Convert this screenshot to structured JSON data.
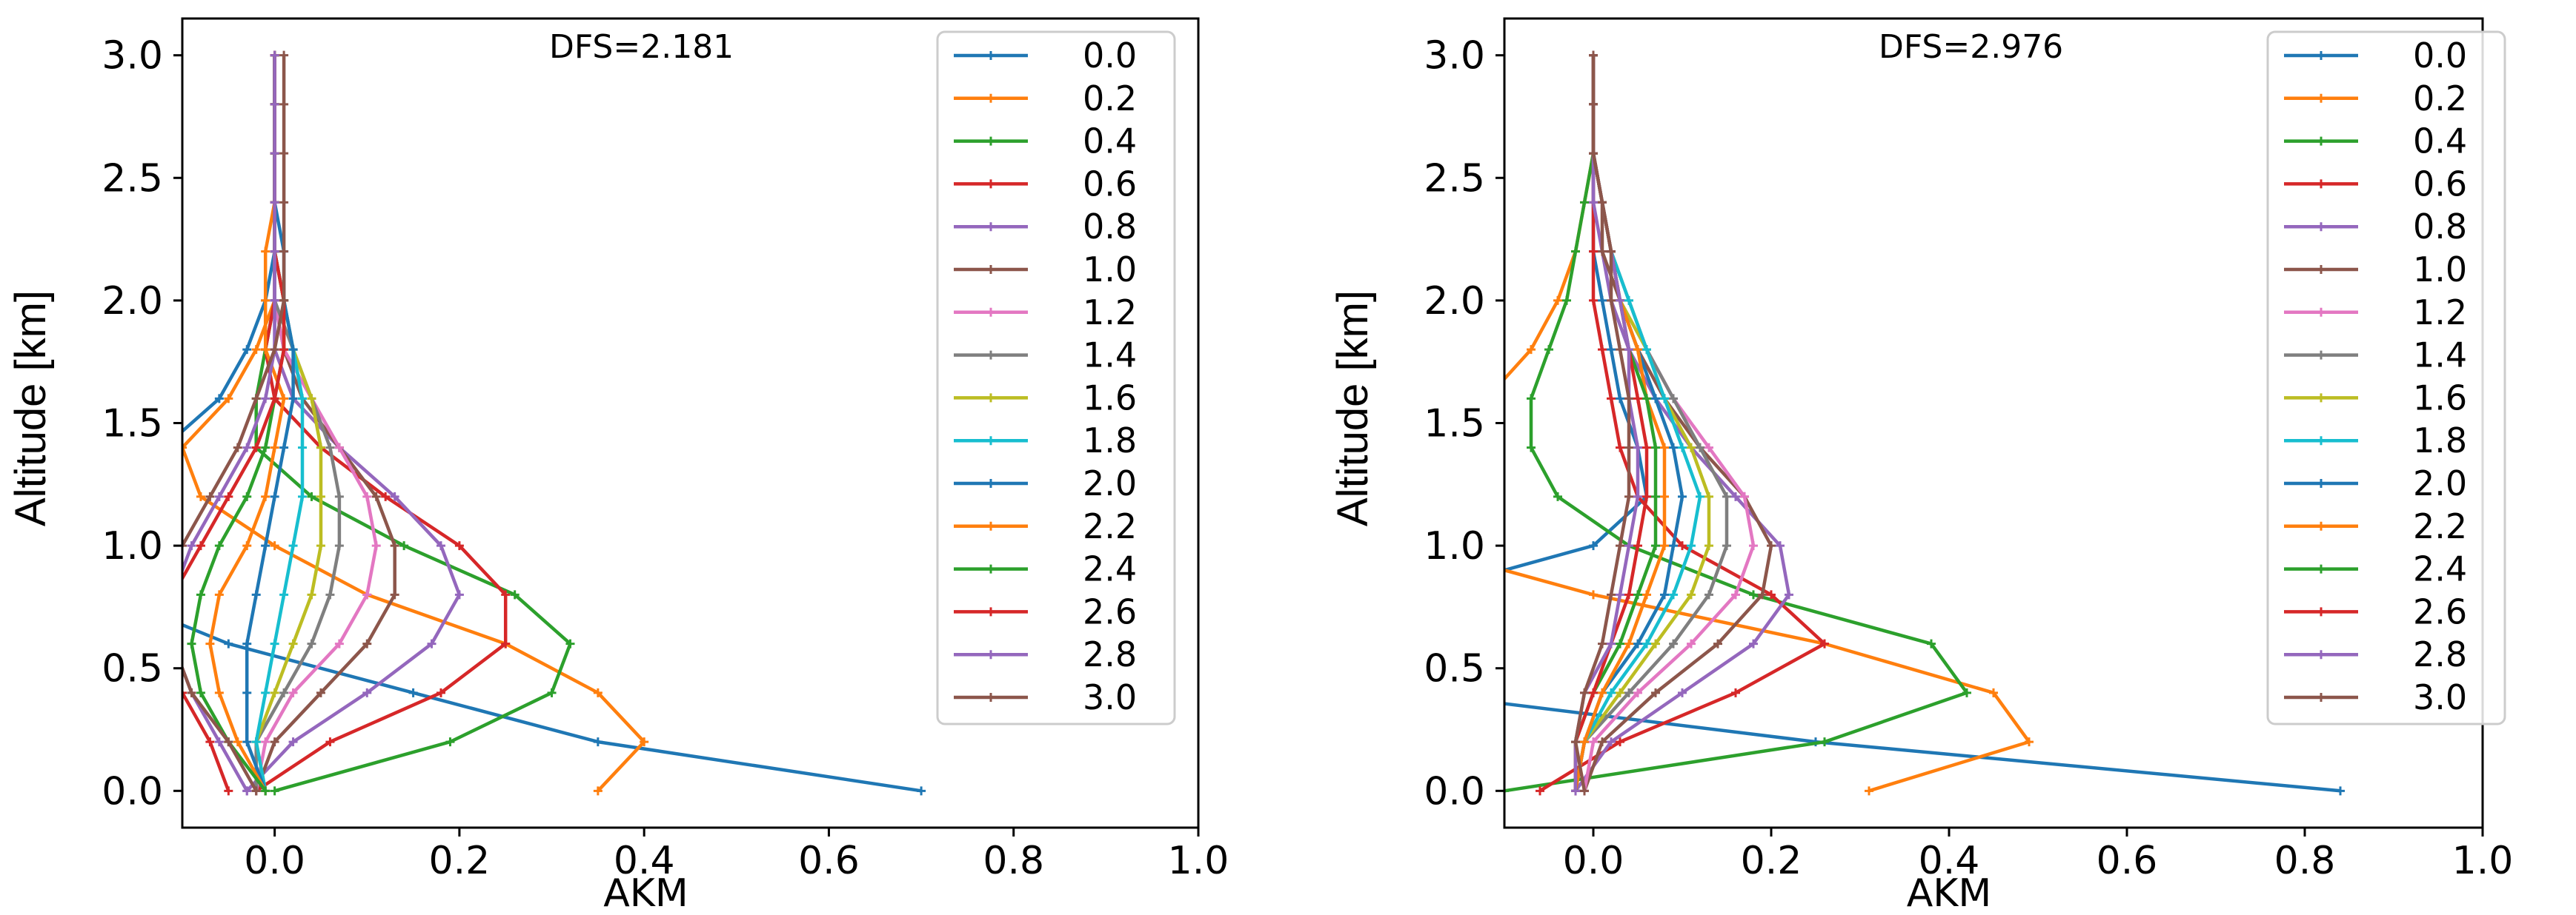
{
  "chart_data": [
    {
      "type": "line",
      "title": "",
      "annotation": "DFS=2.181",
      "xlabel": "AKM",
      "ylabel": "Altitude [km]",
      "xlim": [
        -0.1,
        1.0
      ],
      "ylim": [
        -0.15,
        3.15
      ],
      "xticks": [
        "0.0",
        "0.2",
        "0.4",
        "0.6",
        "0.8",
        "1.0"
      ],
      "yticks": [
        "0.0",
        "0.5",
        "1.0",
        "1.5",
        "2.0",
        "2.5",
        "3.0"
      ],
      "legend_position": "top-right",
      "altitudes": [
        0.0,
        0.2,
        0.4,
        0.6,
        0.8,
        1.0,
        1.2,
        1.4,
        1.6,
        1.8,
        2.0,
        2.2,
        2.4,
        2.6,
        2.8,
        3.0
      ],
      "series": [
        {
          "name": "0.0",
          "color": "#1f77b4",
          "values": [
            0.7,
            0.35,
            0.15,
            -0.05,
            -0.18,
            -0.2,
            -0.18,
            -0.12,
            -0.06,
            -0.03,
            -0.01,
            0.0,
            0.0,
            0.0,
            0.0,
            0.0
          ]
        },
        {
          "name": "0.2",
          "color": "#ff7f0e",
          "values": [
            0.35,
            0.4,
            0.35,
            0.25,
            0.1,
            0.0,
            -0.08,
            -0.1,
            -0.05,
            -0.02,
            0.0,
            0.0,
            0.0,
            0.0,
            0.0,
            0.0
          ]
        },
        {
          "name": "0.4",
          "color": "#2ca02c",
          "values": [
            0.0,
            0.19,
            0.3,
            0.32,
            0.26,
            0.14,
            0.04,
            -0.02,
            -0.02,
            -0.01,
            0.0,
            0.0,
            0.0,
            0.0,
            0.0,
            0.0
          ]
        },
        {
          "name": "0.6",
          "color": "#d62728",
          "values": [
            -0.02,
            0.06,
            0.18,
            0.25,
            0.25,
            0.2,
            0.12,
            0.05,
            0.0,
            -0.01,
            0.0,
            0.0,
            0.0,
            0.0,
            0.0,
            0.0
          ]
        },
        {
          "name": "0.8",
          "color": "#9467bd",
          "values": [
            -0.03,
            0.02,
            0.1,
            0.17,
            0.2,
            0.18,
            0.13,
            0.07,
            0.02,
            0.0,
            0.0,
            0.0,
            0.0,
            0.0,
            0.0,
            0.0
          ]
        },
        {
          "name": "1.0",
          "color": "#8c564b",
          "values": [
            -0.02,
            0.0,
            0.05,
            0.1,
            0.13,
            0.13,
            0.11,
            0.07,
            0.03,
            0.01,
            0.0,
            0.0,
            0.0,
            0.0,
            0.0,
            0.0
          ]
        },
        {
          "name": "1.2",
          "color": "#e377c2",
          "values": [
            -0.02,
            -0.01,
            0.02,
            0.07,
            0.1,
            0.11,
            0.1,
            0.07,
            0.04,
            0.01,
            0.0,
            0.0,
            0.0,
            0.0,
            0.0,
            0.0
          ]
        },
        {
          "name": "1.4",
          "color": "#7f7f7f",
          "values": [
            -0.02,
            -0.02,
            0.01,
            0.04,
            0.06,
            0.07,
            0.07,
            0.06,
            0.04,
            0.02,
            0.0,
            0.0,
            0.0,
            0.0,
            0.0,
            0.0
          ]
        },
        {
          "name": "1.6",
          "color": "#bcbd22",
          "values": [
            -0.01,
            -0.02,
            0.0,
            0.02,
            0.04,
            0.05,
            0.05,
            0.05,
            0.04,
            0.02,
            0.01,
            0.0,
            0.0,
            0.0,
            0.0,
            0.0
          ]
        },
        {
          "name": "1.8",
          "color": "#17becf",
          "values": [
            -0.01,
            -0.02,
            -0.01,
            0.0,
            0.01,
            0.02,
            0.03,
            0.03,
            0.03,
            0.02,
            0.01,
            0.0,
            0.0,
            0.0,
            0.0,
            0.0
          ]
        },
        {
          "name": "2.0",
          "color": "#1f77b4",
          "values": [
            -0.01,
            -0.03,
            -0.03,
            -0.03,
            -0.02,
            -0.01,
            0.0,
            0.01,
            0.02,
            0.02,
            0.01,
            0.01,
            0.0,
            0.0,
            0.0,
            0.0
          ]
        },
        {
          "name": "2.2",
          "color": "#ff7f0e",
          "values": [
            -0.01,
            -0.04,
            -0.06,
            -0.07,
            -0.06,
            -0.03,
            -0.01,
            0.0,
            0.01,
            -0.01,
            -0.01,
            -0.01,
            0.0,
            0.0,
            0.0,
            0.0
          ]
        },
        {
          "name": "2.4",
          "color": "#2ca02c",
          "values": [
            -0.01,
            -0.05,
            -0.08,
            -0.09,
            -0.08,
            -0.06,
            -0.03,
            -0.01,
            0.0,
            0.01,
            0.01,
            0.0,
            0.0,
            0.0,
            0.0,
            0.0
          ]
        },
        {
          "name": "2.6",
          "color": "#d62728",
          "values": [
            -0.05,
            -0.07,
            -0.1,
            -0.12,
            -0.11,
            -0.08,
            -0.05,
            -0.02,
            0.0,
            0.01,
            0.01,
            0.0,
            0.0,
            0.0,
            0.0,
            0.0
          ]
        },
        {
          "name": "2.8",
          "color": "#9467bd",
          "values": [
            -0.03,
            -0.06,
            -0.09,
            -0.11,
            -0.11,
            -0.09,
            -0.06,
            -0.03,
            -0.01,
            0.0,
            0.0,
            0.0,
            0.0,
            0.0,
            0.0,
            0.0
          ]
        },
        {
          "name": "3.0",
          "color": "#8c564b",
          "values": [
            -0.02,
            -0.05,
            -0.09,
            -0.11,
            -0.12,
            -0.1,
            -0.07,
            -0.04,
            -0.02,
            0.0,
            0.01,
            0.01,
            0.01,
            0.01,
            0.01,
            0.01
          ]
        }
      ]
    },
    {
      "type": "line",
      "title": "",
      "annotation": "DFS=2.976",
      "xlabel": "AKM",
      "ylabel": "Altitude [km]",
      "xlim": [
        -0.1,
        1.0
      ],
      "ylim": [
        -0.15,
        3.15
      ],
      "xticks": [
        "0.0",
        "0.2",
        "0.4",
        "0.6",
        "0.8",
        "1.0"
      ],
      "yticks": [
        "0.0",
        "0.5",
        "1.0",
        "1.5",
        "2.0",
        "2.5",
        "3.0"
      ],
      "legend_position": "top-right",
      "altitudes": [
        0.0,
        0.2,
        0.4,
        0.6,
        0.8,
        1.0,
        1.2,
        1.4,
        1.6,
        1.8,
        2.0,
        2.2,
        2.4,
        2.6,
        2.8,
        3.0
      ],
      "series": [
        {
          "name": "0.0",
          "color": "#1f77b4",
          "values": [
            0.84,
            0.25,
            -0.2,
            -0.3,
            -0.2,
            0.0,
            0.06,
            0.05,
            0.03,
            0.02,
            0.01,
            0.0,
            0.0,
            0.0,
            0.0,
            0.0
          ]
        },
        {
          "name": "0.2",
          "color": "#ff7f0e",
          "values": [
            0.31,
            0.49,
            0.45,
            0.26,
            0.0,
            -0.2,
            -0.3,
            -0.22,
            -0.12,
            -0.07,
            -0.04,
            -0.02,
            -0.01,
            0.0,
            0.0,
            0.0
          ]
        },
        {
          "name": "0.4",
          "color": "#2ca02c",
          "values": [
            -0.1,
            0.26,
            0.42,
            0.38,
            0.18,
            0.04,
            -0.04,
            -0.07,
            -0.07,
            -0.05,
            -0.03,
            -0.02,
            -0.01,
            0.0,
            0.0,
            0.0
          ]
        },
        {
          "name": "0.6",
          "color": "#d62728",
          "values": [
            -0.06,
            0.03,
            0.16,
            0.26,
            0.2,
            0.1,
            0.05,
            0.03,
            0.02,
            0.01,
            0.0,
            0.0,
            0.0,
            0.0,
            0.0,
            0.0
          ]
        },
        {
          "name": "0.8",
          "color": "#9467bd",
          "values": [
            -0.02,
            0.02,
            0.1,
            0.18,
            0.22,
            0.21,
            0.16,
            0.11,
            0.07,
            0.04,
            0.02,
            0.01,
            0.0,
            0.0,
            0.0,
            0.0
          ]
        },
        {
          "name": "1.0",
          "color": "#8c564b",
          "values": [
            -0.01,
            0.01,
            0.07,
            0.14,
            0.19,
            0.2,
            0.17,
            0.12,
            0.08,
            0.05,
            0.03,
            0.01,
            0.01,
            0.0,
            0.0,
            0.0
          ]
        },
        {
          "name": "1.2",
          "color": "#e377c2",
          "values": [
            -0.01,
            0.0,
            0.05,
            0.11,
            0.16,
            0.18,
            0.17,
            0.13,
            0.09,
            0.06,
            0.03,
            0.02,
            0.01,
            0.0,
            0.0,
            0.0
          ]
        },
        {
          "name": "1.4",
          "color": "#7f7f7f",
          "values": [
            -0.02,
            -0.01,
            0.04,
            0.09,
            0.13,
            0.15,
            0.15,
            0.12,
            0.09,
            0.06,
            0.04,
            0.02,
            0.01,
            0.0,
            0.0,
            0.0
          ]
        },
        {
          "name": "1.6",
          "color": "#bcbd22",
          "values": [
            -0.02,
            -0.01,
            0.03,
            0.07,
            0.11,
            0.13,
            0.13,
            0.11,
            0.08,
            0.06,
            0.03,
            0.02,
            0.01,
            0.0,
            0.0,
            0.0
          ]
        },
        {
          "name": "1.8",
          "color": "#17becf",
          "values": [
            -0.02,
            -0.01,
            0.02,
            0.06,
            0.09,
            0.11,
            0.12,
            0.1,
            0.08,
            0.06,
            0.04,
            0.02,
            0.01,
            0.0,
            0.0,
            0.0
          ]
        },
        {
          "name": "2.0",
          "color": "#1f77b4",
          "values": [
            -0.02,
            -0.01,
            0.01,
            0.05,
            0.08,
            0.09,
            0.1,
            0.09,
            0.07,
            0.05,
            0.03,
            0.02,
            0.01,
            0.0,
            0.0,
            0.0
          ]
        },
        {
          "name": "2.2",
          "color": "#ff7f0e",
          "values": [
            -0.02,
            -0.01,
            0.01,
            0.04,
            0.06,
            0.08,
            0.08,
            0.08,
            0.06,
            0.05,
            0.03,
            0.02,
            0.01,
            0.0,
            0.0,
            0.0
          ]
        },
        {
          "name": "2.4",
          "color": "#2ca02c",
          "values": [
            -0.02,
            -0.02,
            0.0,
            0.03,
            0.05,
            0.07,
            0.07,
            0.07,
            0.06,
            0.04,
            0.03,
            0.02,
            0.01,
            0.0,
            0.0,
            0.0
          ]
        },
        {
          "name": "2.6",
          "color": "#d62728",
          "values": [
            -0.02,
            -0.02,
            0.0,
            0.02,
            0.04,
            0.05,
            0.06,
            0.06,
            0.05,
            0.04,
            0.03,
            0.02,
            0.01,
            0.0,
            0.0,
            0.0
          ]
        },
        {
          "name": "2.8",
          "color": "#9467bd",
          "values": [
            -0.02,
            -0.02,
            -0.01,
            0.02,
            0.03,
            0.04,
            0.05,
            0.05,
            0.04,
            0.04,
            0.03,
            0.02,
            0.01,
            0.0,
            0.0,
            0.0
          ]
        },
        {
          "name": "3.0",
          "color": "#8c564b",
          "values": [
            -0.01,
            -0.02,
            -0.01,
            0.01,
            0.02,
            0.03,
            0.04,
            0.04,
            0.04,
            0.03,
            0.02,
            0.02,
            0.01,
            0.0,
            0.0,
            0.0
          ]
        }
      ]
    }
  ]
}
